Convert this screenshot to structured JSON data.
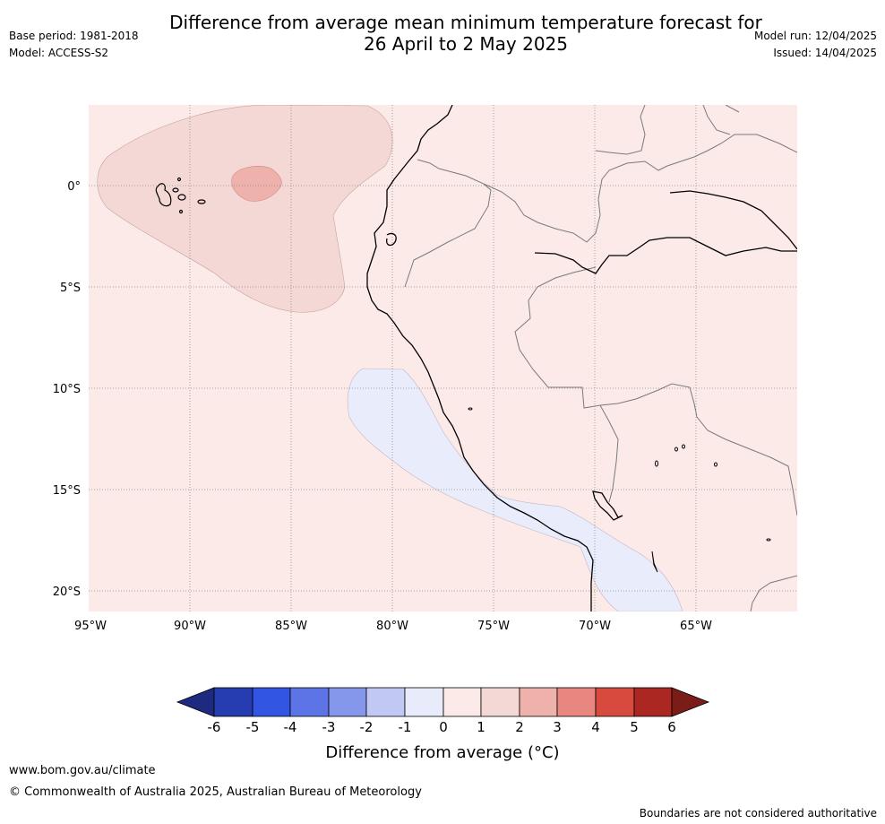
{
  "title": {
    "line1": "Difference from average mean minimum temperature forecast for",
    "line2": "26 April to 2 May 2025"
  },
  "meta": {
    "base_period": "Base period: 1981-2018",
    "model": "Model: ACCESS-S2",
    "model_run": "Model run: 12/04/2025",
    "issued": "Issued: 14/04/2025"
  },
  "map": {
    "lon_ticks": [
      "95°W",
      "90°W",
      "85°W",
      "80°W",
      "75°W",
      "70°W",
      "65°W"
    ],
    "lat_ticks": [
      "0°",
      "5°S",
      "10°S",
      "15°S",
      "20°S"
    ],
    "lon_range": [
      -95,
      -60
    ],
    "lat_range": [
      -21,
      4
    ],
    "regions": [
      {
        "name": "background",
        "category": "0 to 1",
        "color": "#fbeae8"
      },
      {
        "name": "western-anomaly",
        "category": "1 to 2",
        "color": "#f4d8d5"
      },
      {
        "name": "anomaly-core",
        "category": "2 to 3",
        "color": "#eeb1ab"
      },
      {
        "name": "coastal-cool-band",
        "category": "-1 to 0",
        "color": "#e8ecfb"
      }
    ]
  },
  "colorbar": {
    "label": "Difference from average (°C)",
    "ticks": [
      "-6",
      "-5",
      "-4",
      "-3",
      "-2",
      "-1",
      "0",
      "1",
      "2",
      "3",
      "4",
      "5",
      "6"
    ],
    "colors": [
      "#1e2a80",
      "#263db1",
      "#3355e3",
      "#5c74e6",
      "#8597ea",
      "#c1c8f4",
      "#e8ebfa",
      "#fbeae8",
      "#f4d8d5",
      "#eeb1ab",
      "#e8877f",
      "#d94a3e",
      "#ab2822",
      "#7a1d18"
    ]
  },
  "footer": {
    "url": "www.bom.gov.au/climate",
    "copyright": "© Commonwealth of Australia 2025, Australian Bureau of Meteorology",
    "disclaimer": "Boundaries are not considered authoritative"
  }
}
